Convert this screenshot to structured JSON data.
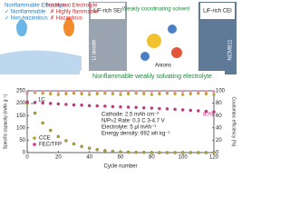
{
  "graphic": {
    "left_good_title": "Nonflammable Electrolyte",
    "left_good_items": [
      "✓ Nonflammable",
      "✓ Non-hazardous"
    ],
    "left_bad_title": "Traditional Electrolyte",
    "left_bad_items": [
      "✗ Highly flammable",
      "✗ Hazardous"
    ],
    "sei_label": "LiF-rich SEI",
    "anode_label": "Li anode",
    "solvent_label": "Weakly coordinating solvent",
    "anion_label": "Anions",
    "cei_label": "LiF-rich CEI",
    "cathode_label": "NCM811",
    "banner": "Nonflammable weakly solvating electrolyte"
  },
  "chart_data": {
    "type": "line",
    "xlabel": "Cycle number",
    "ylabel": "Specific capacity (mAh g⁻¹)",
    "y2label": "Coulombic efficiency (%)",
    "x": [
      0,
      5,
      10,
      15,
      20,
      25,
      30,
      35,
      40,
      45,
      50,
      55,
      60,
      65,
      70,
      75,
      80,
      85,
      90,
      95,
      100,
      105,
      110,
      115,
      120
    ],
    "series": [
      {
        "name": "CCE",
        "color": "#b3a52c",
        "values": [
          200,
          160,
          120,
          90,
          65,
          48,
          35,
          25,
          18,
          12,
          8,
          5,
          3,
          2,
          1,
          1,
          0,
          0,
          0,
          0,
          0,
          0,
          0,
          0,
          0
        ]
      },
      {
        "name": "FEC/TFP",
        "color": "#d6308a",
        "values": [
          205,
          203,
          201,
          199,
          197,
          195,
          193,
          192,
          190,
          189,
          188,
          186,
          185,
          184,
          183,
          181,
          180,
          178,
          177,
          175,
          173,
          171,
          169,
          167,
          165
        ]
      },
      {
        "color": "#b3a52c",
        "axis": "y2",
        "values": [
          96,
          97,
          96,
          95,
          94,
          95,
          96,
          95,
          94,
          95,
          96,
          95,
          94,
          95,
          96,
          95,
          94,
          95,
          96,
          95,
          94,
          95,
          96,
          95,
          94
        ]
      },
      {
        "color": "#e88bbd",
        "axis": "y2",
        "values": [
          97,
          99,
          99,
          99,
          99,
          99,
          99,
          99,
          99,
          99,
          99,
          99,
          99,
          99,
          99,
          99,
          99,
          99,
          99,
          99,
          99,
          99,
          99,
          99,
          99
        ]
      }
    ],
    "xlim": [
      0,
      120
    ],
    "xticks": [
      0,
      20,
      40,
      60,
      80,
      100,
      120
    ],
    "ylim": [
      0,
      250
    ],
    "yticks": [
      0,
      50,
      100,
      150,
      200,
      250
    ],
    "y2lim": [
      0,
      100
    ],
    "y2ticks": [
      0,
      20,
      40,
      60,
      80,
      100
    ],
    "annotations": [
      "1C",
      "80%",
      "Cathode: 2.5 mAh cm⁻²",
      "N/P≈2   Rate: 0.3 C   3-4.7 V",
      "Electrolyte: 5 μl mAh⁻¹",
      "Energy density: 692 wh kg⁻¹"
    ]
  }
}
